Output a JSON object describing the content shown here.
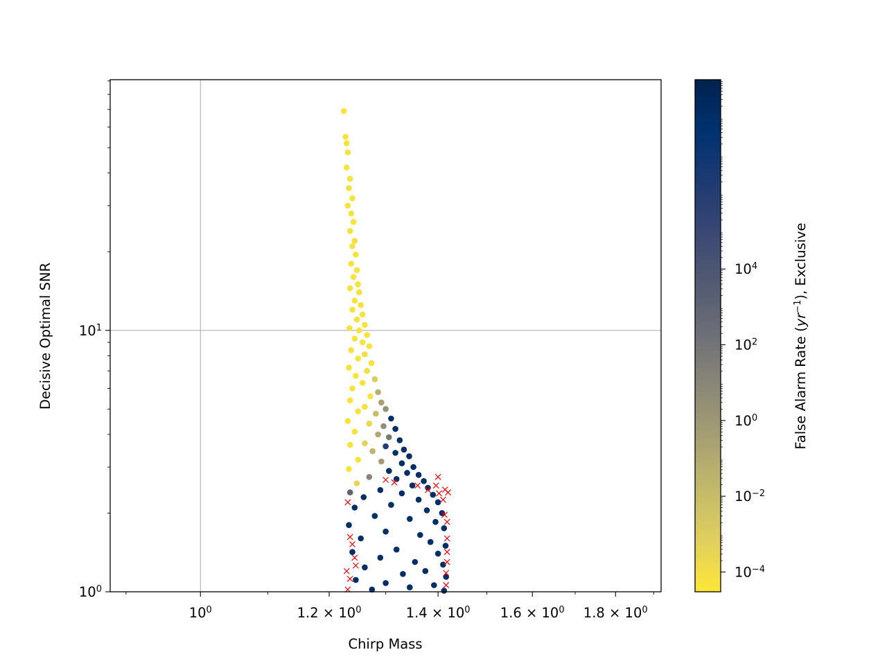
{
  "chart_data": {
    "type": "scatter",
    "xlabel": "Chirp Mass",
    "ylabel": "Decisive Optimal SNR",
    "x_scale": "log",
    "y_scale": "log",
    "xlim": [
      0.88,
      1.92
    ],
    "ylim": [
      1,
      91
    ],
    "grid": true,
    "x_major_ticks": [
      {
        "value": 1.0,
        "base": "10",
        "exp": "0"
      },
      {
        "value": 1.2,
        "base": "1.2 × 10",
        "exp": "0"
      },
      {
        "value": 1.4,
        "base": "1.4 × 10",
        "exp": "0"
      },
      {
        "value": 1.6,
        "base": "1.6 × 10",
        "exp": "0"
      },
      {
        "value": 1.8,
        "base": "1.8 × 10",
        "exp": "0"
      }
    ],
    "y_major_ticks": [
      {
        "value": 1,
        "base": "10",
        "exp": "0"
      },
      {
        "value": 10,
        "base": "10",
        "exp": "1"
      }
    ],
    "colorbar": {
      "label_prefix": "False Alarm Rate (",
      "label_math_base": "yr",
      "label_math_exp": "−1",
      "label_suffix": "), Exclusive",
      "scale": "log",
      "range": [
        3e-05,
        1000000000
      ],
      "colormap": "cividis_r",
      "stops": [
        "#fde737",
        "#e0cf5e",
        "#c3b96a",
        "#a69f72",
        "#8a8877",
        "#6e7077",
        "#545b73",
        "#3a4873",
        "#1e3a72",
        "#00326f",
        "#00224e"
      ],
      "ticks": [
        {
          "value": 0.0001,
          "base": "10",
          "exp": "−4"
        },
        {
          "value": 0.01,
          "base": "10",
          "exp": "−2"
        },
        {
          "value": 1,
          "base": "10",
          "exp": "0"
        },
        {
          "value": 100,
          "base": "10",
          "exp": "2"
        },
        {
          "value": 10000,
          "base": "10",
          "exp": "4"
        }
      ]
    },
    "series": [
      {
        "marker": "circle",
        "color_encoding": "False Alarm Rate",
        "points": [
          [
            1.225,
            69.0,
            5e-05
          ],
          [
            1.228,
            55.0,
            5e-05
          ],
          [
            1.23,
            52.0,
            5e-05
          ],
          [
            1.232,
            48.0,
            6e-05
          ],
          [
            1.23,
            42.0,
            5e-05
          ],
          [
            1.236,
            38.0,
            5e-05
          ],
          [
            1.234,
            35.0,
            7e-05
          ],
          [
            1.24,
            32.0,
            5e-05
          ],
          [
            1.232,
            30.0,
            5e-05
          ],
          [
            1.238,
            28.0,
            6e-05
          ],
          [
            1.242,
            26.0,
            5e-05
          ],
          [
            1.236,
            24.0,
            5e-05
          ],
          [
            1.244,
            22.0,
            8e-05
          ],
          [
            1.24,
            21.0,
            5e-05
          ],
          [
            1.246,
            19.5,
            5e-05
          ],
          [
            1.238,
            18.0,
            5e-05
          ],
          [
            1.248,
            17.0,
            6e-05
          ],
          [
            1.242,
            16.0,
            5e-05
          ],
          [
            1.25,
            15.0,
            5e-05
          ],
          [
            1.236,
            14.5,
            5e-05
          ],
          [
            1.252,
            14.0,
            7e-05
          ],
          [
            1.244,
            13.0,
            5e-05
          ],
          [
            1.255,
            12.5,
            5e-05
          ],
          [
            1.24,
            12.0,
            5e-05
          ],
          [
            1.258,
            11.5,
            5e-05
          ],
          [
            1.248,
            11.0,
            6e-05
          ],
          [
            1.262,
            10.5,
            5e-05
          ],
          [
            1.235,
            10.2,
            5e-05
          ],
          [
            1.252,
            10.0,
            5e-05
          ],
          [
            1.266,
            9.6,
            5e-05
          ],
          [
            1.244,
            9.3,
            6e-05
          ],
          [
            1.258,
            9.0,
            5e-05
          ],
          [
            1.27,
            8.7,
            5e-05
          ],
          [
            1.238,
            8.4,
            5e-05
          ],
          [
            1.262,
            8.1,
            8e-05
          ],
          [
            1.25,
            7.8,
            5e-05
          ],
          [
            1.274,
            7.5,
            5e-05
          ],
          [
            1.234,
            7.2,
            5e-05
          ],
          [
            1.266,
            7.0,
            0.0001
          ],
          [
            1.246,
            6.7,
            5e-05
          ],
          [
            1.28,
            6.5,
            0.001
          ],
          [
            1.258,
            6.3,
            5e-05
          ],
          [
            1.24,
            6.0,
            5e-05
          ],
          [
            1.286,
            5.8,
            0.05
          ],
          [
            1.272,
            5.6,
            5e-05
          ],
          [
            1.236,
            5.4,
            5e-05
          ],
          [
            1.292,
            5.3,
            0.3
          ],
          [
            1.262,
            5.1,
            5e-05
          ],
          [
            1.3,
            5.0,
            2.0
          ],
          [
            1.25,
            4.9,
            5e-05
          ],
          [
            1.282,
            4.8,
            0.01
          ],
          [
            1.31,
            4.6,
            100000000
          ],
          [
            1.232,
            4.5,
            5e-05
          ],
          [
            1.27,
            4.4,
            0.0002
          ],
          [
            1.296,
            4.3,
            3.0
          ],
          [
            1.318,
            4.2,
            100000000
          ],
          [
            1.244,
            4.1,
            5e-05
          ],
          [
            1.286,
            4.0,
            0.1
          ],
          [
            1.306,
            3.9,
            50
          ],
          [
            1.326,
            3.8,
            100000000
          ],
          [
            1.262,
            3.7,
            0.0005
          ],
          [
            1.236,
            3.65,
            5e-05
          ],
          [
            1.3,
            3.6,
            1000000
          ],
          [
            1.334,
            3.5,
            100000000
          ],
          [
            1.276,
            3.45,
            0.02
          ],
          [
            1.318,
            3.4,
            100000000
          ],
          [
            1.344,
            3.3,
            100000000
          ],
          [
            1.25,
            3.2,
            5e-05
          ],
          [
            1.292,
            3.15,
            0.5
          ],
          [
            1.33,
            3.1,
            100000000
          ],
          [
            1.352,
            3.0,
            100000000
          ],
          [
            1.234,
            2.95,
            5e-05
          ],
          [
            1.306,
            2.9,
            100000000
          ],
          [
            1.34,
            2.85,
            100000000
          ],
          [
            1.362,
            2.8,
            100000000
          ],
          [
            1.27,
            2.75,
            10
          ],
          [
            1.32,
            2.7,
            100000000
          ],
          [
            1.372,
            2.65,
            100000000
          ],
          [
            1.248,
            2.6,
            0.0003
          ],
          [
            1.35,
            2.55,
            100000000
          ],
          [
            1.38,
            2.5,
            100000000
          ],
          [
            1.29,
            2.45,
            100000000
          ],
          [
            1.236,
            2.4,
            1000
          ],
          [
            1.33,
            2.38,
            100000000
          ],
          [
            1.39,
            2.35,
            100000000
          ],
          [
            1.26,
            2.3,
            100000000
          ],
          [
            1.362,
            2.25,
            100000000
          ],
          [
            1.4,
            2.2,
            100000000
          ],
          [
            1.31,
            2.15,
            100000000
          ],
          [
            1.244,
            2.1,
            100000000
          ],
          [
            1.378,
            2.05,
            100000000
          ],
          [
            1.408,
            2.0,
            100000000
          ],
          [
            1.28,
            1.95,
            100000000
          ],
          [
            1.345,
            1.9,
            100000000
          ],
          [
            1.395,
            1.85,
            100000000
          ],
          [
            1.234,
            1.8,
            100000000
          ],
          [
            1.412,
            1.75,
            100000000
          ],
          [
            1.3,
            1.7,
            100000000
          ],
          [
            1.365,
            1.65,
            100000000
          ],
          [
            1.255,
            1.6,
            100000000
          ],
          [
            1.385,
            1.55,
            100000000
          ],
          [
            1.415,
            1.5,
            100000000
          ],
          [
            1.32,
            1.45,
            100000000
          ],
          [
            1.24,
            1.42,
            100000000
          ],
          [
            1.4,
            1.4,
            100000000
          ],
          [
            1.29,
            1.35,
            100000000
          ],
          [
            1.355,
            1.3,
            100000000
          ],
          [
            1.41,
            1.27,
            100000000
          ],
          [
            1.262,
            1.24,
            100000000
          ],
          [
            1.375,
            1.2,
            100000000
          ],
          [
            1.332,
            1.17,
            100000000
          ],
          [
            1.416,
            1.14,
            100000000
          ],
          [
            1.246,
            1.11,
            100000000
          ],
          [
            1.3,
            1.08,
            100000000
          ],
          [
            1.392,
            1.06,
            100000000
          ],
          [
            1.345,
            1.04,
            100000000
          ],
          [
            1.275,
            1.02,
            100000000
          ],
          [
            1.412,
            1.01,
            100000000
          ]
        ]
      },
      {
        "marker": "x",
        "color": "#ff0000",
        "points": [
          [
            1.36,
            2.55
          ],
          [
            1.38,
            2.45
          ],
          [
            1.4,
            2.75
          ],
          [
            1.402,
            2.38
          ],
          [
            1.414,
            2.46
          ],
          [
            1.42,
            2.4
          ],
          [
            1.418,
            1.85
          ],
          [
            1.418,
            1.6
          ],
          [
            1.418,
            1.42
          ],
          [
            1.418,
            1.3
          ],
          [
            1.416,
            1.18
          ],
          [
            1.416,
            1.06
          ],
          [
            1.232,
            2.2
          ],
          [
            1.236,
            1.62
          ],
          [
            1.24,
            1.52
          ],
          [
            1.244,
            1.35
          ],
          [
            1.23,
            1.2
          ],
          [
            1.236,
            1.12
          ],
          [
            1.232,
            1.02
          ],
          [
            1.246,
            1.26
          ],
          [
            1.3,
            2.68
          ],
          [
            1.316,
            2.62
          ],
          [
            1.41,
            2.25
          ],
          [
            1.413,
            1.97
          ],
          [
            1.396,
            2.55
          ]
        ]
      }
    ]
  }
}
